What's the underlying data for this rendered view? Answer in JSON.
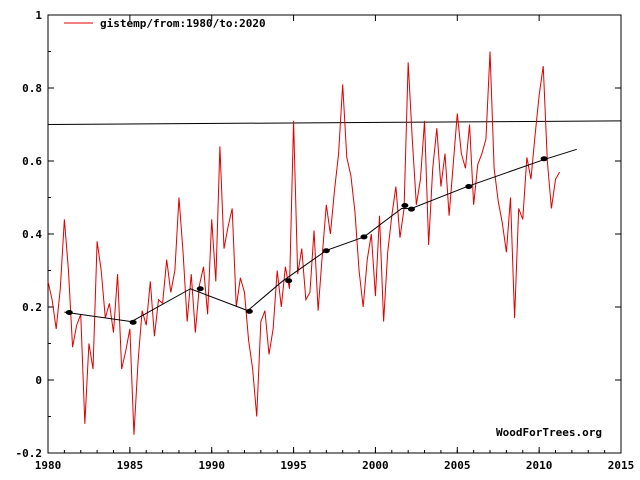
{
  "colors": {
    "series": "#e00000",
    "trend": "#000000",
    "markers": "#000000",
    "axes": "#000000",
    "background": "#ffffff"
  },
  "chart_data": {
    "type": "line",
    "title": "",
    "xlabel": "",
    "ylabel": "",
    "xlim": [
      1980,
      2015
    ],
    "ylim": [
      -0.2,
      1.0
    ],
    "grid": false,
    "legend_position": "top-left",
    "x_ticks": [
      "1980",
      "1985",
      "1990",
      "1995",
      "2000",
      "2005",
      "2010",
      "2015"
    ],
    "y_ticks": [
      "-0.2",
      "0",
      "0.2",
      "0.4",
      "0.6",
      "0.8",
      "1"
    ],
    "legend": {
      "label": "gistemp/from:1980/to:2020"
    },
    "watermark": "WoodForTrees.org",
    "reference_line": {
      "x": [
        1980,
        2015
      ],
      "y": [
        0.7,
        0.71
      ]
    },
    "series": [
      {
        "name": "gistemp/from:1980/to:2020",
        "x": [
          1980.0,
          1980.25,
          1980.5,
          1980.75,
          1981.0,
          1981.25,
          1981.5,
          1981.75,
          1982.0,
          1982.25,
          1982.5,
          1982.75,
          1983.0,
          1983.25,
          1983.5,
          1983.75,
          1984.0,
          1984.25,
          1984.5,
          1984.75,
          1985.0,
          1985.25,
          1985.5,
          1985.75,
          1986.0,
          1986.25,
          1986.5,
          1986.75,
          1987.0,
          1987.25,
          1987.5,
          1987.75,
          1988.0,
          1988.25,
          1988.5,
          1988.75,
          1989.0,
          1989.25,
          1989.5,
          1989.75,
          1990.0,
          1990.25,
          1990.5,
          1990.75,
          1991.0,
          1991.25,
          1991.5,
          1991.75,
          1992.0,
          1992.25,
          1992.5,
          1992.75,
          1993.0,
          1993.25,
          1993.5,
          1993.75,
          1994.0,
          1994.25,
          1994.5,
          1994.75,
          1995.0,
          1995.25,
          1995.5,
          1995.75,
          1996.0,
          1996.25,
          1996.5,
          1996.75,
          1997.0,
          1997.25,
          1997.5,
          1997.75,
          1998.0,
          1998.25,
          1998.5,
          1998.75,
          1999.0,
          1999.25,
          1999.5,
          1999.75,
          2000.0,
          2000.25,
          2000.5,
          2000.75,
          2001.0,
          2001.25,
          2001.5,
          2001.75,
          2002.0,
          2002.25,
          2002.5,
          2002.75,
          2003.0,
          2003.25,
          2003.5,
          2003.75,
          2004.0,
          2004.25,
          2004.5,
          2004.75,
          2005.0,
          2005.25,
          2005.5,
          2005.75,
          2006.0,
          2006.25,
          2006.5,
          2006.75,
          2007.0,
          2007.25,
          2007.5,
          2007.75,
          2008.0,
          2008.25,
          2008.5,
          2008.75,
          2009.0,
          2009.25,
          2009.5,
          2009.75,
          2010.0,
          2010.25,
          2010.5,
          2010.75,
          2011.0,
          2011.25
        ],
        "y": [
          0.27,
          0.22,
          0.14,
          0.25,
          0.44,
          0.3,
          0.09,
          0.15,
          0.18,
          -0.12,
          0.1,
          0.03,
          0.38,
          0.3,
          0.17,
          0.21,
          0.13,
          0.29,
          0.03,
          0.08,
          0.14,
          -0.15,
          0.05,
          0.19,
          0.15,
          0.27,
          0.12,
          0.22,
          0.21,
          0.33,
          0.24,
          0.3,
          0.5,
          0.35,
          0.16,
          0.29,
          0.13,
          0.26,
          0.31,
          0.18,
          0.44,
          0.27,
          0.64,
          0.36,
          0.42,
          0.47,
          0.2,
          0.28,
          0.24,
          0.11,
          0.03,
          -0.1,
          0.16,
          0.19,
          0.07,
          0.14,
          0.3,
          0.2,
          0.31,
          0.25,
          0.71,
          0.29,
          0.36,
          0.22,
          0.24,
          0.41,
          0.19,
          0.34,
          0.48,
          0.4,
          0.52,
          0.62,
          0.81,
          0.61,
          0.56,
          0.46,
          0.3,
          0.2,
          0.33,
          0.4,
          0.23,
          0.45,
          0.16,
          0.35,
          0.45,
          0.53,
          0.39,
          0.47,
          0.87,
          0.66,
          0.48,
          0.55,
          0.71,
          0.37,
          0.58,
          0.69,
          0.53,
          0.62,
          0.45,
          0.59,
          0.73,
          0.62,
          0.58,
          0.7,
          0.48,
          0.59,
          0.62,
          0.66,
          0.9,
          0.58,
          0.49,
          0.43,
          0.35,
          0.5,
          0.17,
          0.47,
          0.44,
          0.61,
          0.55,
          0.67,
          0.78,
          0.86,
          0.6,
          0.47,
          0.55,
          0.57
        ]
      },
      {
        "name": "",
        "x": [
          1981.0,
          1985.1,
          1988.7,
          1992.2,
          1994.3,
          1997.0,
          1999.3,
          2001.6,
          2002.2,
          2005.6,
          2010.3,
          2012.3
        ],
        "y": [
          0.186,
          0.16,
          0.25,
          0.19,
          0.27,
          0.355,
          0.392,
          0.47,
          0.47,
          0.53,
          0.604,
          0.632
        ]
      }
    ],
    "markers": {
      "x": [
        1981.3,
        1985.2,
        1989.3,
        1992.3,
        1994.7,
        1997.0,
        1999.3,
        2001.8,
        2002.2,
        2005.7,
        2010.3
      ],
      "y": [
        0.185,
        0.158,
        0.25,
        0.188,
        0.272,
        0.354,
        0.392,
        0.478,
        0.468,
        0.53,
        0.606
      ]
    }
  }
}
